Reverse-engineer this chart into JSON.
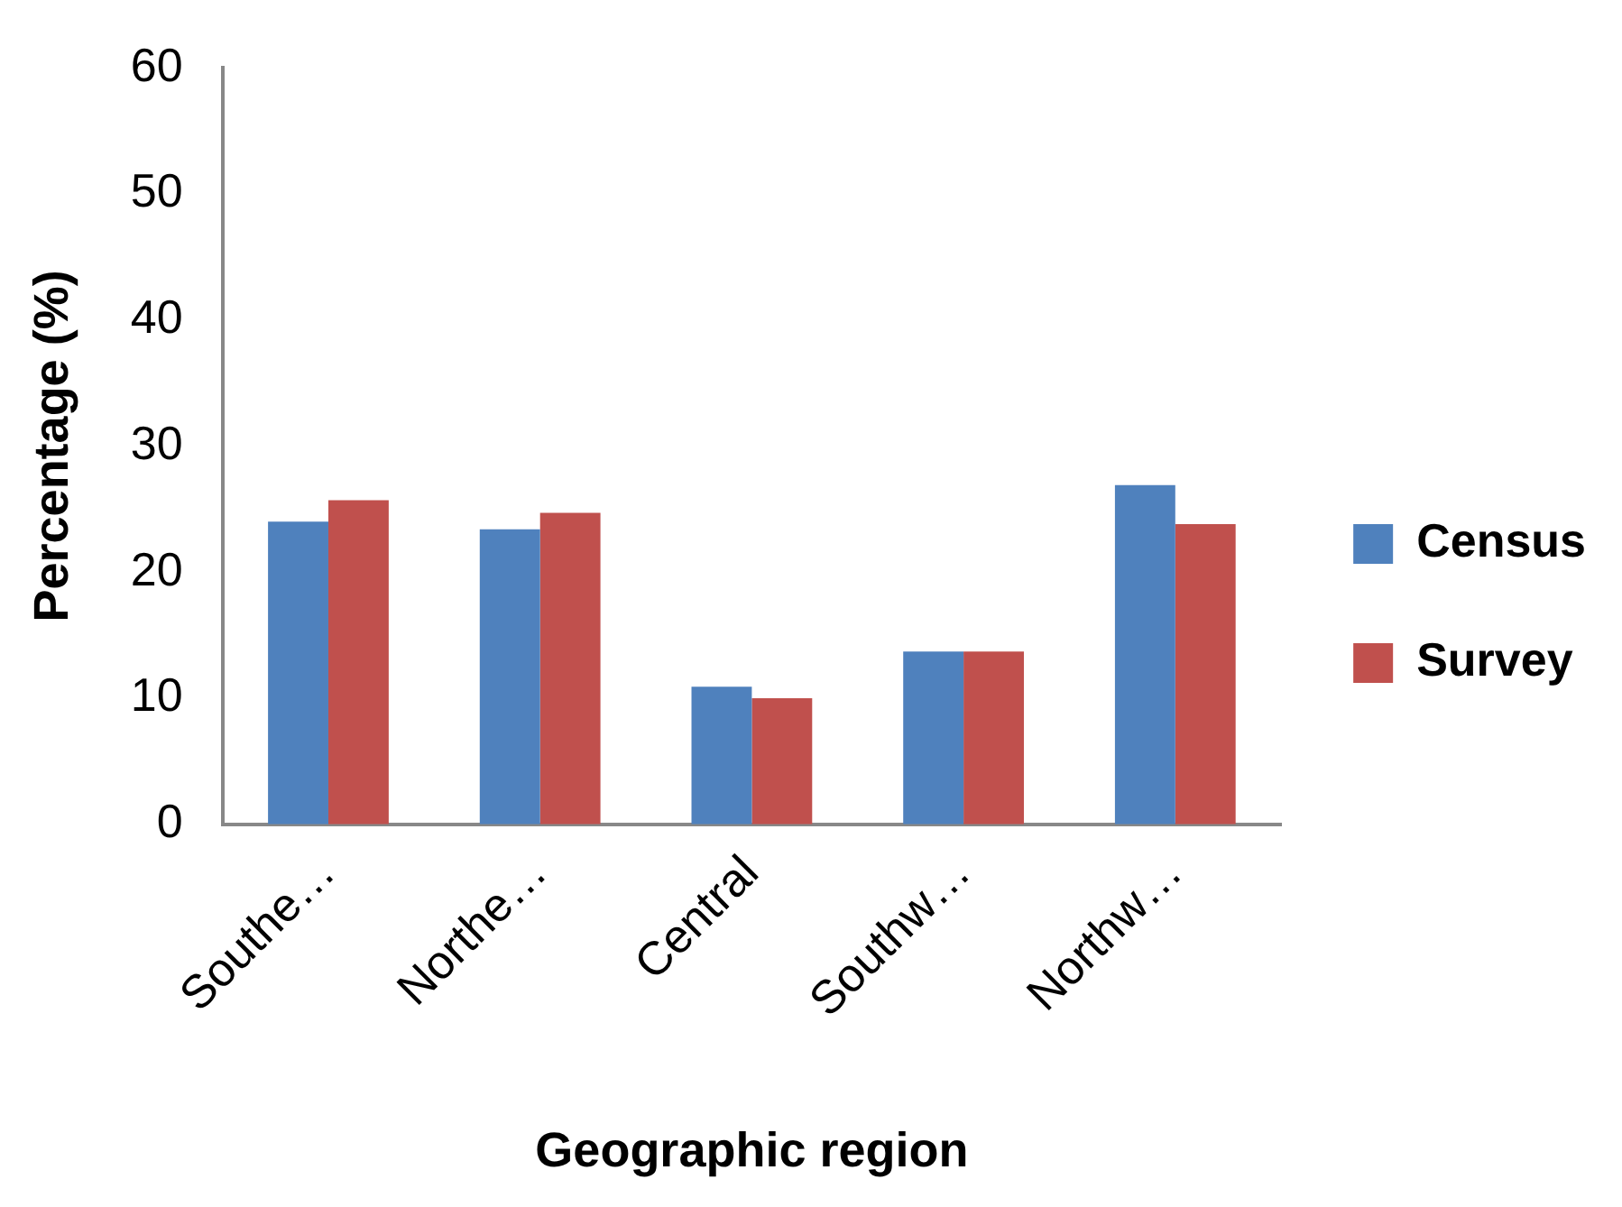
{
  "chart_data": {
    "type": "bar",
    "xlabel": "Geographic region",
    "ylabel": "Percentage (%)",
    "categories": [
      "Southe…",
      "Northe…",
      "Central",
      "Southw…",
      "Northw…"
    ],
    "series": [
      {
        "name": "Census",
        "color": "#4f81bd",
        "values": [
          24.0,
          23.4,
          10.9,
          13.7,
          26.9
        ]
      },
      {
        "name": "Survey",
        "color": "#c0504d",
        "values": [
          25.7,
          24.7,
          10.0,
          13.7,
          23.8
        ]
      }
    ],
    "ylim": [
      0,
      60
    ],
    "yticks": [
      0,
      10,
      20,
      30,
      40,
      50,
      60
    ],
    "grid": false,
    "legend": "right"
  }
}
